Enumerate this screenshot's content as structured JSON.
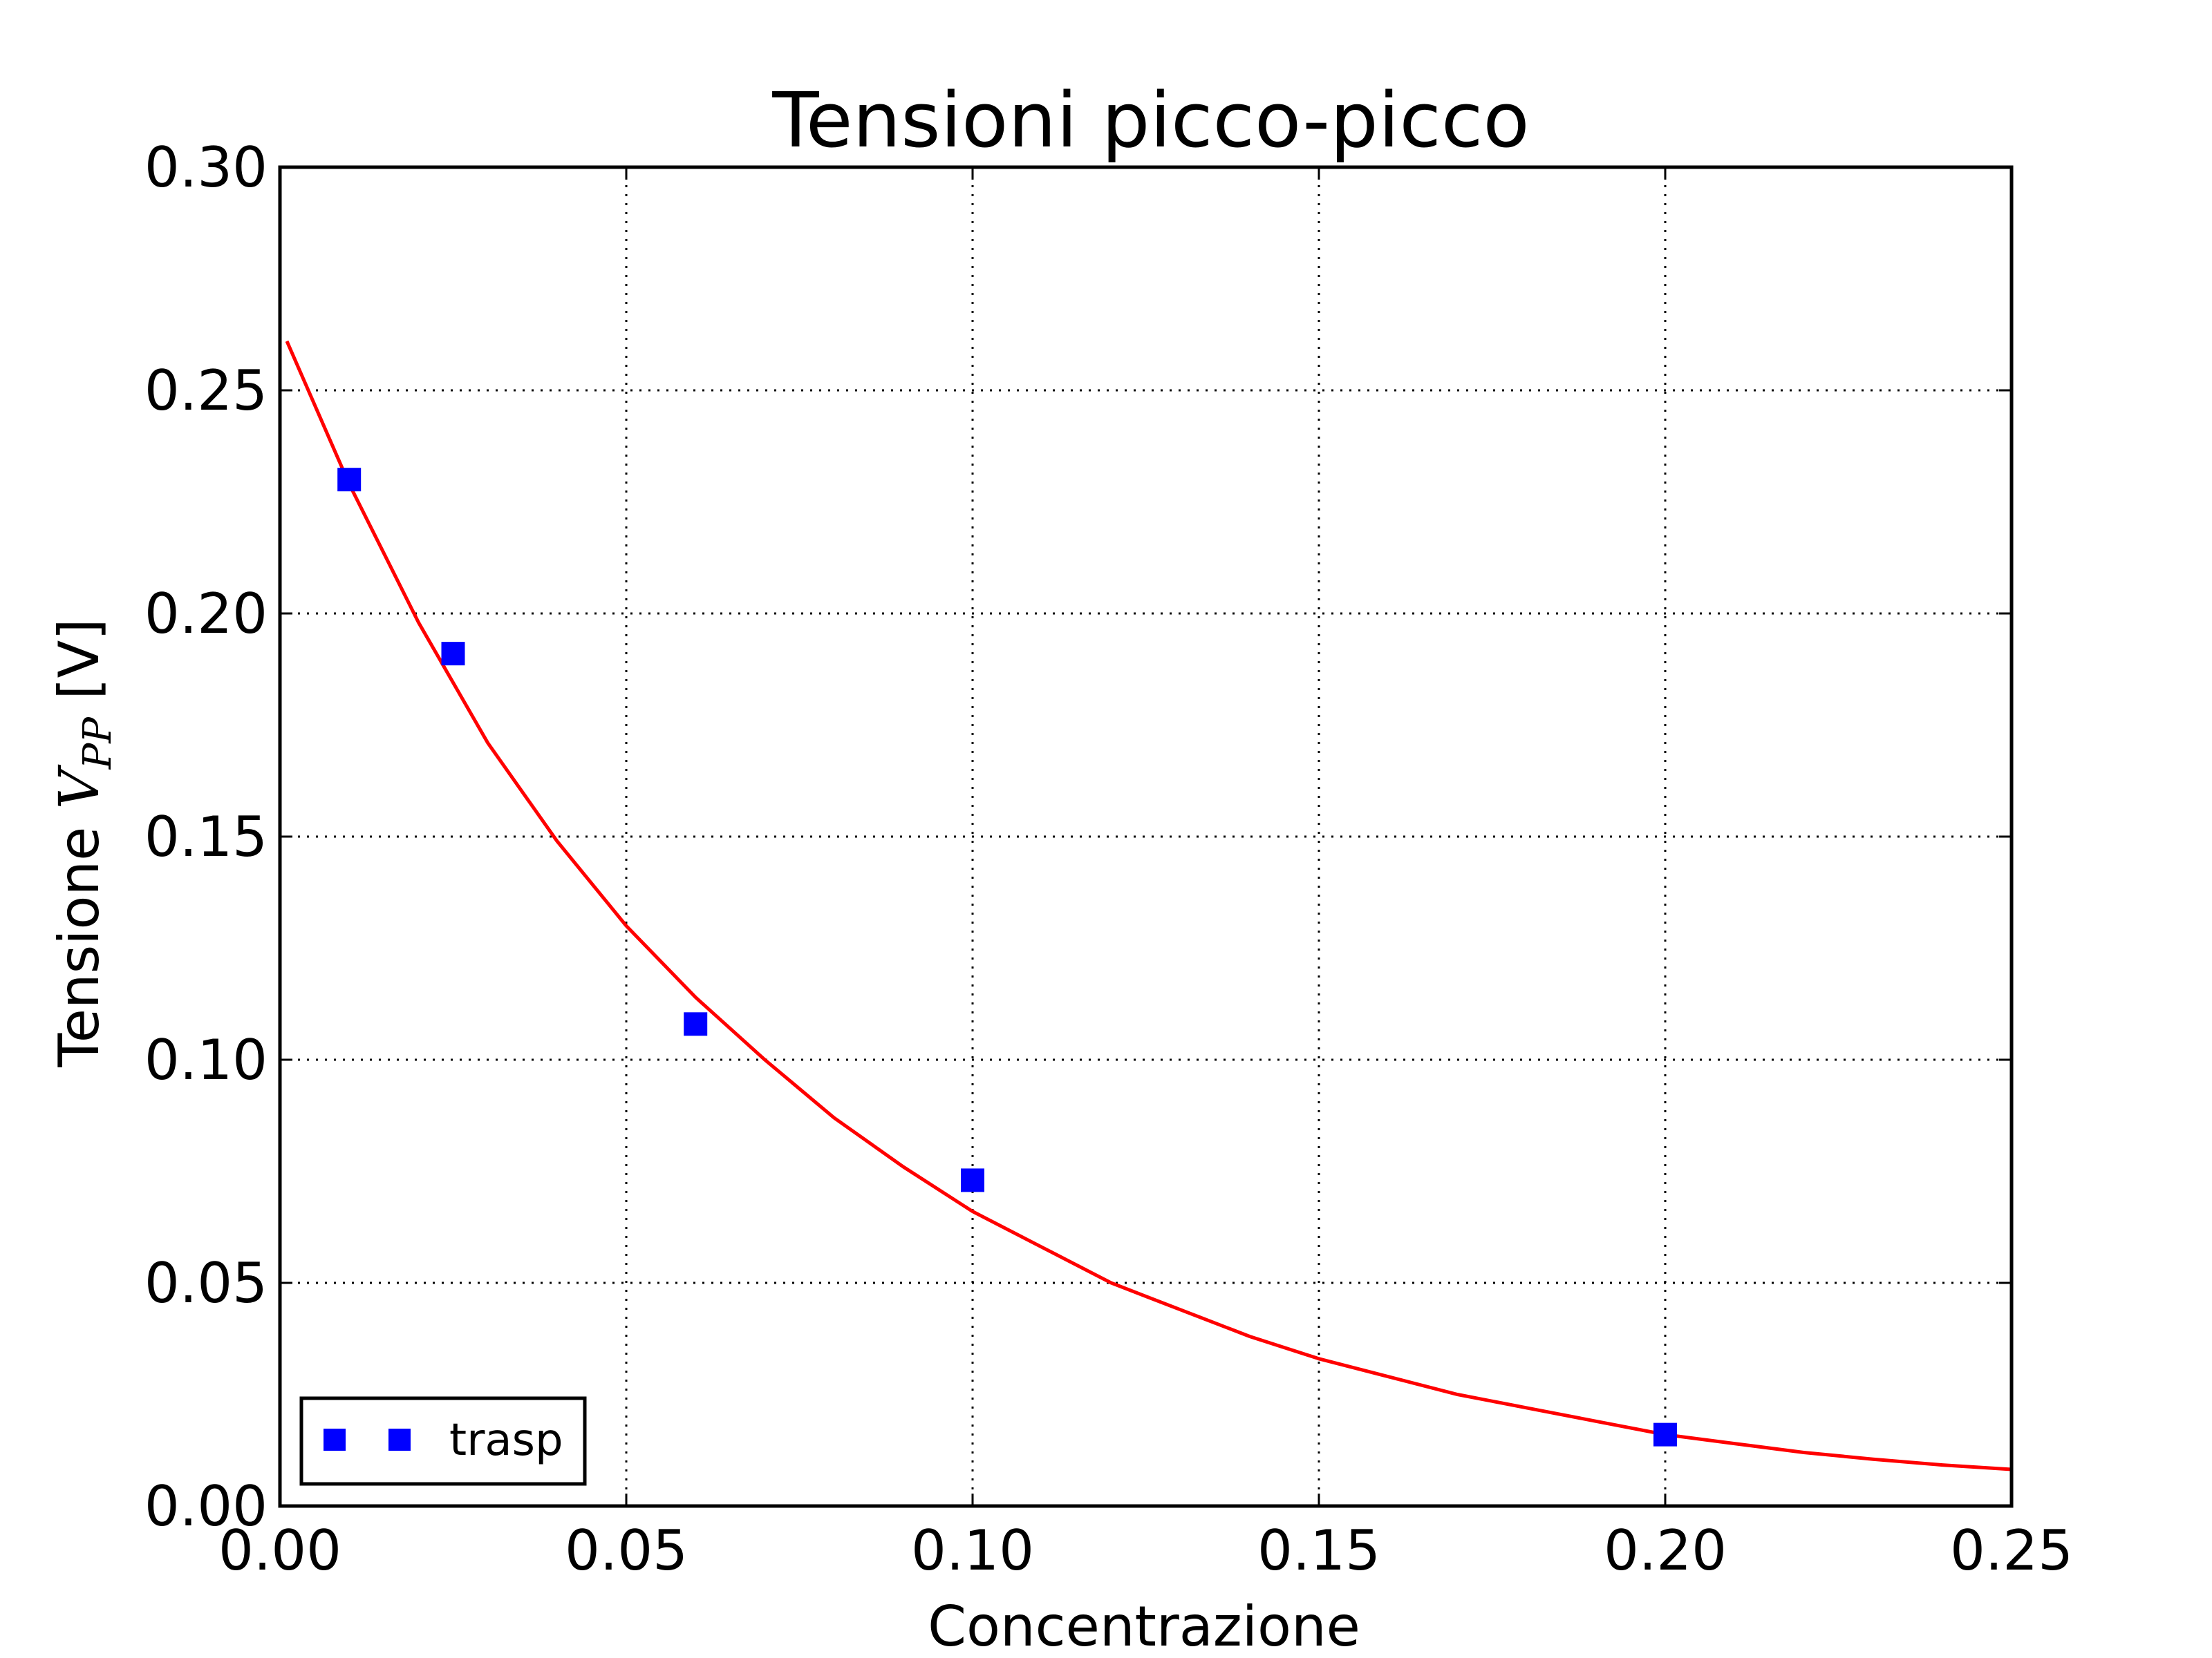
{
  "chart_data": {
    "type": "scatter",
    "title": "Tensioni picco-picco",
    "xlabel": "Concentrazione",
    "ylabel": {
      "prefix": "Tensione ",
      "symbol": "V",
      "subscript": "PP",
      "suffix": " [V]"
    },
    "xlim": [
      0.0,
      0.25
    ],
    "ylim": [
      0.0,
      0.3
    ],
    "x_ticks": [
      "0.00",
      "0.05",
      "0.10",
      "0.15",
      "0.20",
      "0.25"
    ],
    "y_ticks": [
      "0.00",
      "0.05",
      "0.10",
      "0.15",
      "0.20",
      "0.25",
      "0.30"
    ],
    "grid": true,
    "legend_position": "lower-left",
    "series": [
      {
        "name": "trasp",
        "marker": "square",
        "color": "#0000ff",
        "x": [
          0.01,
          0.025,
          0.06,
          0.1,
          0.2
        ],
        "y": [
          0.23,
          0.191,
          0.108,
          0.073,
          0.016
        ]
      }
    ],
    "fit_curve": {
      "color": "#ff0000",
      "type": "exponential",
      "x": [
        0.001,
        0.01,
        0.02,
        0.03,
        0.04,
        0.05,
        0.06,
        0.07,
        0.08,
        0.09,
        0.1,
        0.11,
        0.12,
        0.13,
        0.14,
        0.15,
        0.16,
        0.17,
        0.18,
        0.19,
        0.2,
        0.21,
        0.22,
        0.23,
        0.24,
        0.25
      ],
      "y": [
        0.261,
        0.229,
        0.198,
        0.171,
        0.149,
        0.13,
        0.114,
        0.1,
        0.087,
        0.076,
        0.066,
        0.058,
        0.05,
        0.044,
        0.038,
        0.033,
        0.029,
        0.025,
        0.022,
        0.019,
        0.016,
        0.014,
        0.012,
        0.0105,
        0.0092,
        0.0082
      ]
    }
  }
}
